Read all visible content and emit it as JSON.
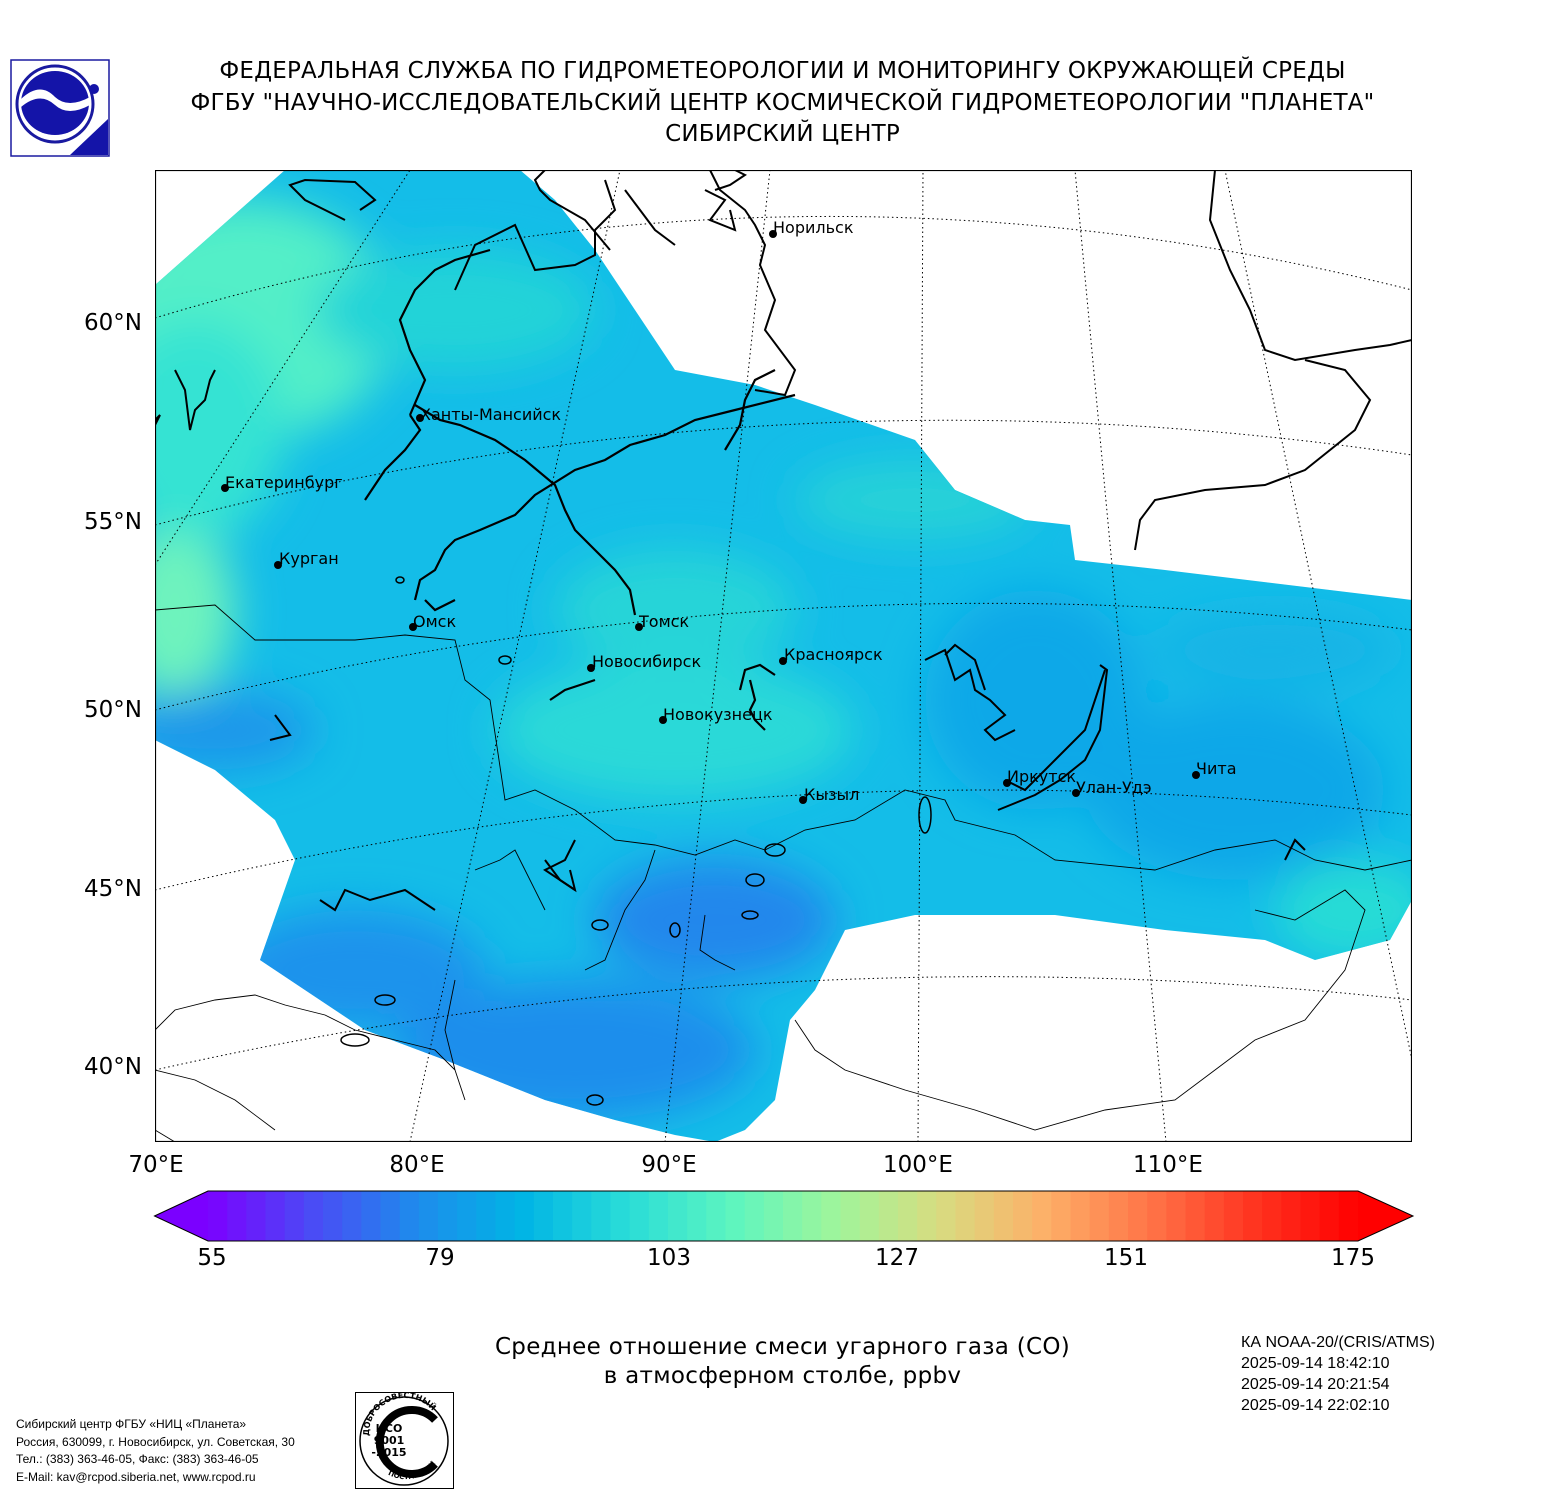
{
  "header": {
    "line1": "ФЕДЕРАЛЬНАЯ СЛУЖБА ПО ГИДРОМЕТЕОРОЛОГИИ И МОНИТОРИНГУ ОКРУЖАЮЩЕЙ СРЕДЫ",
    "line2": "ФГБУ \"НАУЧНО-ИССЛЕДОВАТЕЛЬСКИЙ ЦЕНТР КОСМИЧЕСКОЙ ГИДРОМЕТЕОРОЛОГИИ \"ПЛАНЕТА\"",
    "line3": "СИБИРСКИЙ ЦЕНТР"
  },
  "map": {
    "lat_labels": [
      "60°N",
      "55°N",
      "50°N",
      "45°N",
      "40°N"
    ],
    "lon_labels": [
      "70°E",
      "80°E",
      "90°E",
      "100°E",
      "110°E"
    ],
    "cities": [
      "Норильск",
      "Ханты-Мансийск",
      "Екатеринбург",
      "Курган",
      "Омск",
      "Томск",
      "Новосибирск",
      "Красноярск",
      "Новокузнецк",
      "Кызыл",
      "Иркутск",
      "Улан-Удэ",
      "Чита"
    ],
    "ocean_color": "#ffffff",
    "field_colors": {
      "low": "#1e8cec",
      "mid": "#12bce8",
      "high": "#2fe0d8",
      "peak": "#6cf3bf"
    }
  },
  "colorbar": {
    "ticks": [
      "55",
      "79",
      "103",
      "127",
      "151",
      "175"
    ],
    "min": 55,
    "max": 175,
    "colors": [
      "#7b00ff",
      "#4a4bf5",
      "#1e8cec",
      "#00b4e5",
      "#29dcd8",
      "#5cf5c0",
      "#9ff59b",
      "#d8dc80",
      "#fdb068",
      "#ff7548",
      "#ff3420",
      "#ff0000"
    ],
    "extend": "both"
  },
  "caption": {
    "line1": "Среднее отношение смеси угарного газа (CO)",
    "line2": "в атмосферном столбе, ppbv"
  },
  "satellite": {
    "name": "КА NOAA-20/(CRIS/ATMS)",
    "times": [
      "2025-09-14 18:42:10",
      "2025-09-14 20:21:54",
      "2025-09-14 22:02:10"
    ]
  },
  "contacts": {
    "line1": "Сибирский центр ФГБУ «НИЦ «Планета»",
    "line2": "Россия, 630099, г. Новосибирск, ул. Советская, 30",
    "line3": "Тел.: (383) 363-46-05, Факс: (383) 363-46-05",
    "line4": "E-Mail: kav@rcpod.siberia.net, www.rcpod.ru"
  },
  "stamp": {
    "top_text": "ДОБРОСОВЕСТНЫЙ",
    "center_line1": "ИСО",
    "center_line2": "9001",
    "center_line3": "-2015",
    "bottom_text": "ПОСТАВЩИК"
  }
}
